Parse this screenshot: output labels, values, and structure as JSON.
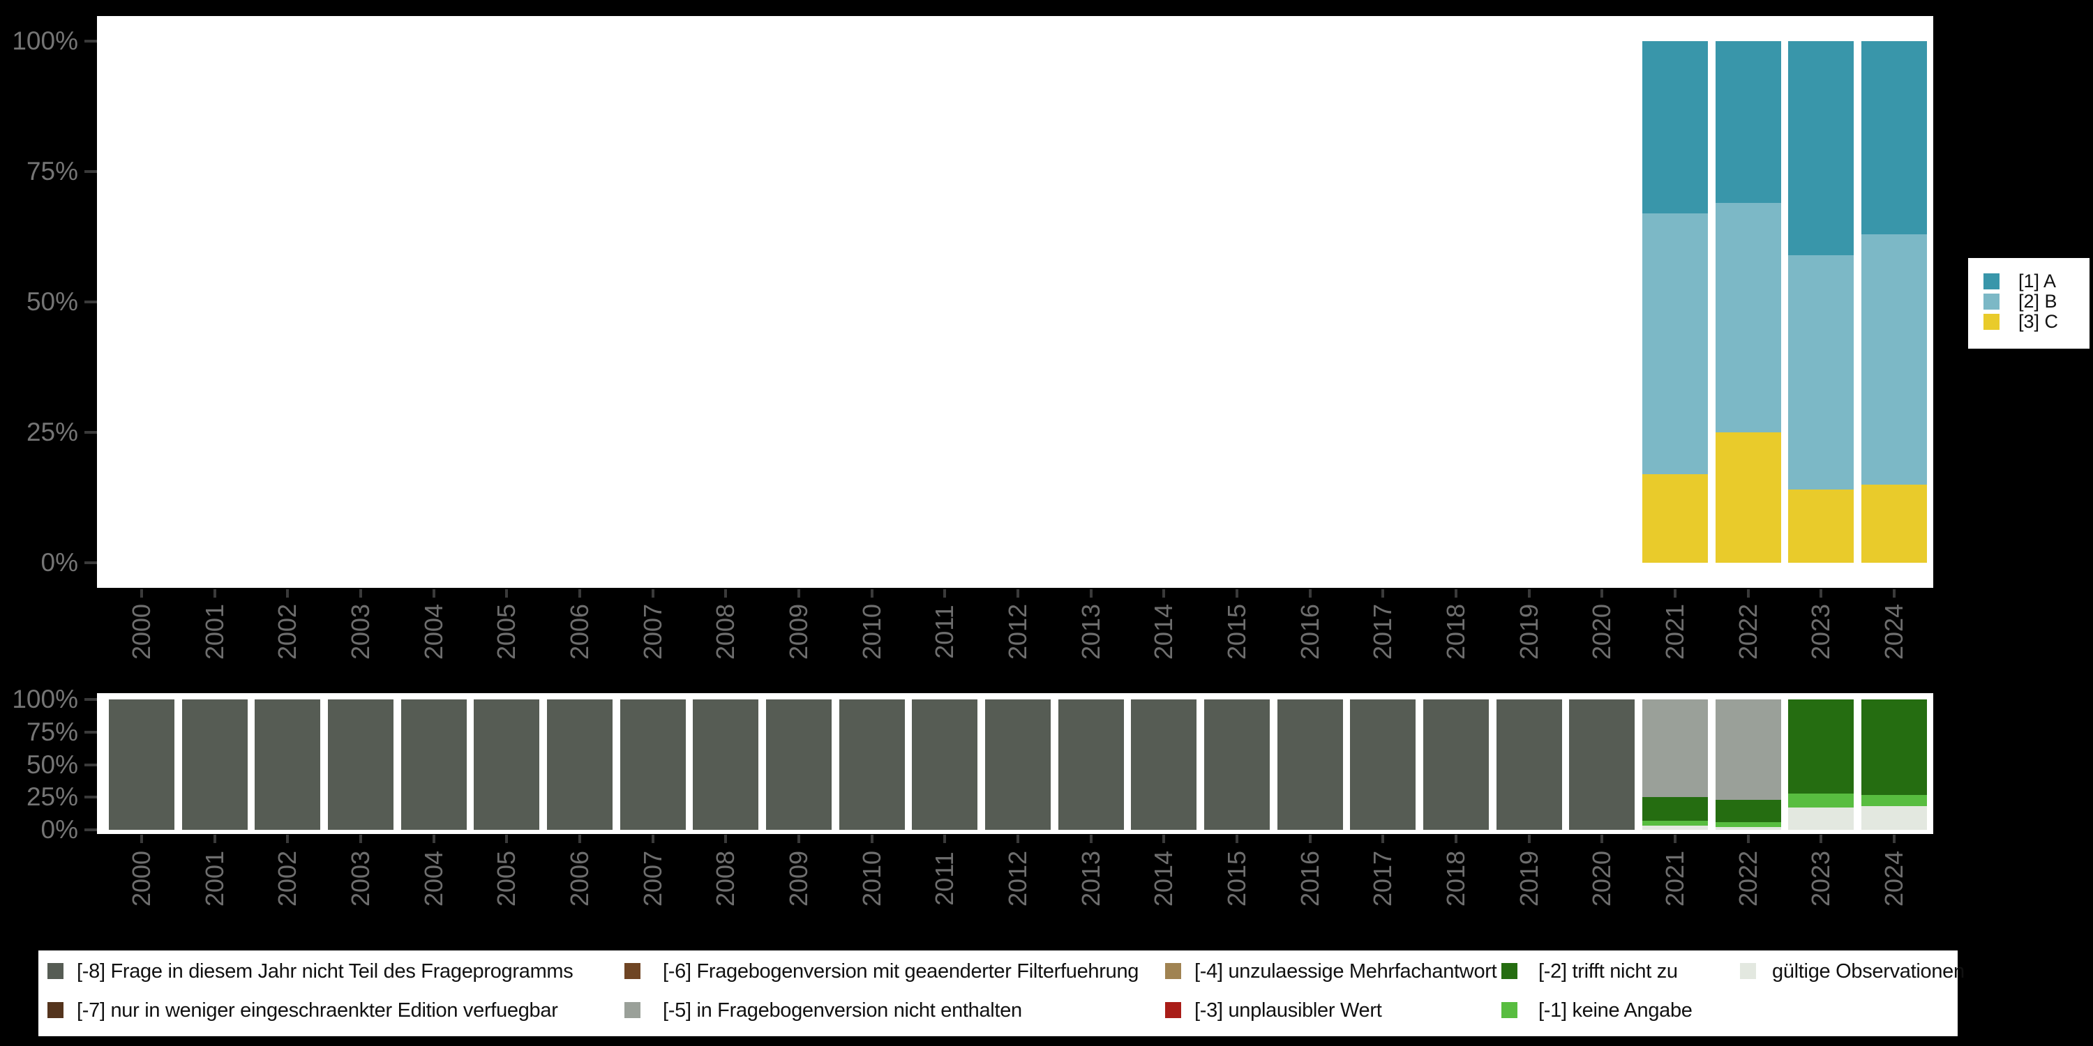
{
  "background_color": "#000000",
  "plot_background_color": "#ffffff",
  "axis": {
    "label_color": "#757575",
    "tick_color": "#3a3a3a",
    "y_tick_labels": [
      "0%",
      "25%",
      "50%",
      "75%",
      "100%"
    ],
    "years": [
      "2000",
      "2001",
      "2002",
      "2003",
      "2004",
      "2005",
      "2006",
      "2007",
      "2008",
      "2009",
      "2010",
      "2011",
      "2012",
      "2013",
      "2014",
      "2015",
      "2016",
      "2017",
      "2018",
      "2019",
      "2020",
      "2021",
      "2022",
      "2023",
      "2024"
    ]
  },
  "legend_main": {
    "items": [
      {
        "code": "A",
        "label": "[1] A",
        "color": "#3996aa"
      },
      {
        "code": "B",
        "label": "[2] B",
        "color": "#7cb8c6"
      },
      {
        "code": "C",
        "label": "[3] C",
        "color": "#e9cb2b"
      }
    ]
  },
  "legend_missing": {
    "rows": [
      [
        {
          "code": "-8",
          "label": "[-8] Frage in diesem Jahr nicht Teil des Frageprogramms",
          "color": "#565c54"
        },
        {
          "code": "-6",
          "label": "[-6] Fragebogenversion mit geaenderter Filterfuehrung",
          "color": "#6f4524"
        },
        {
          "code": "-4",
          "label": "[-4] unzulaessige Mehrfachantwort",
          "color": "#a08352"
        },
        {
          "code": "-2",
          "label": "[-2] trifft nicht zu",
          "color": "#256d11"
        },
        {
          "code": "valid",
          "label": "gültige Observationen",
          "color": "#e3e8e0"
        }
      ],
      [
        {
          "code": "-7",
          "label": "[-7] nur in weniger eingeschraenkter Edition verfuegbar",
          "color": "#54341d"
        },
        {
          "code": "-5",
          "label": "[-5] in Fragebogenversion nicht enthalten",
          "color": "#9aa099"
        },
        {
          "code": "-3",
          "label": "[-3] unplausibler Wert",
          "color": "#a91d18"
        },
        {
          "code": "-1",
          "label": "[-1] keine Angabe",
          "color": "#58bd40"
        }
      ]
    ]
  },
  "chart_data": [
    {
      "type": "bar",
      "stacked": true,
      "unit": "percent",
      "title": "",
      "xlabel": "",
      "ylabel": "",
      "ylim": [
        0,
        100
      ],
      "grid": false,
      "legend_position": "right",
      "categories": [
        "2000",
        "2001",
        "2002",
        "2003",
        "2004",
        "2005",
        "2006",
        "2007",
        "2008",
        "2009",
        "2010",
        "2011",
        "2012",
        "2013",
        "2014",
        "2015",
        "2016",
        "2017",
        "2018",
        "2019",
        "2020",
        "2021",
        "2022",
        "2023",
        "2024"
      ],
      "series": [
        {
          "code": "A",
          "name": "[1] A",
          "color": "#3996aa",
          "values": [
            null,
            null,
            null,
            null,
            null,
            null,
            null,
            null,
            null,
            null,
            null,
            null,
            null,
            null,
            null,
            null,
            null,
            null,
            null,
            null,
            null,
            33,
            31,
            41,
            37
          ]
        },
        {
          "code": "B",
          "name": "[2] B",
          "color": "#7cb8c6",
          "values": [
            null,
            null,
            null,
            null,
            null,
            null,
            null,
            null,
            null,
            null,
            null,
            null,
            null,
            null,
            null,
            null,
            null,
            null,
            null,
            null,
            null,
            50,
            44,
            45,
            48
          ]
        },
        {
          "code": "C",
          "name": "[3] C",
          "color": "#e9cb2b",
          "values": [
            null,
            null,
            null,
            null,
            null,
            null,
            null,
            null,
            null,
            null,
            null,
            null,
            null,
            null,
            null,
            null,
            null,
            null,
            null,
            null,
            null,
            17,
            25,
            14,
            15
          ]
        }
      ]
    },
    {
      "type": "bar",
      "stacked": true,
      "unit": "percent",
      "title": "",
      "xlabel": "",
      "ylabel": "",
      "ylim": [
        0,
        100
      ],
      "grid": false,
      "legend_position": "bottom",
      "categories": [
        "2000",
        "2001",
        "2002",
        "2003",
        "2004",
        "2005",
        "2006",
        "2007",
        "2008",
        "2009",
        "2010",
        "2011",
        "2012",
        "2013",
        "2014",
        "2015",
        "2016",
        "2017",
        "2018",
        "2019",
        "2020",
        "2021",
        "2022",
        "2023",
        "2024"
      ],
      "series": [
        {
          "code": "-8",
          "name": "[-8] Frage in diesem Jahr nicht Teil des Frageprogramms",
          "color": "#565c54",
          "values": [
            100,
            100,
            100,
            100,
            100,
            100,
            100,
            100,
            100,
            100,
            100,
            100,
            100,
            100,
            100,
            100,
            100,
            100,
            100,
            100,
            100,
            0,
            0,
            0,
            0
          ]
        },
        {
          "code": "-5",
          "name": "[-5] in Fragebogenversion nicht enthalten",
          "color": "#9aa099",
          "values": [
            0,
            0,
            0,
            0,
            0,
            0,
            0,
            0,
            0,
            0,
            0,
            0,
            0,
            0,
            0,
            0,
            0,
            0,
            0,
            0,
            0,
            75,
            77,
            0,
            0
          ]
        },
        {
          "code": "-2",
          "name": "[-2] trifft nicht zu",
          "color": "#256d11",
          "values": [
            0,
            0,
            0,
            0,
            0,
            0,
            0,
            0,
            0,
            0,
            0,
            0,
            0,
            0,
            0,
            0,
            0,
            0,
            0,
            0,
            0,
            18,
            17,
            72,
            73
          ]
        },
        {
          "code": "-1",
          "name": "[-1] keine Angabe",
          "color": "#58bd40",
          "values": [
            0,
            0,
            0,
            0,
            0,
            0,
            0,
            0,
            0,
            0,
            0,
            0,
            0,
            0,
            0,
            0,
            0,
            0,
            0,
            0,
            0,
            4,
            4,
            11,
            9
          ]
        },
        {
          "code": "valid",
          "name": "gültige Observationen",
          "color": "#e3e8e0",
          "values": [
            0,
            0,
            0,
            0,
            0,
            0,
            0,
            0,
            0,
            0,
            0,
            0,
            0,
            0,
            0,
            0,
            0,
            0,
            0,
            0,
            0,
            3,
            2,
            17,
            18
          ]
        }
      ]
    }
  ]
}
